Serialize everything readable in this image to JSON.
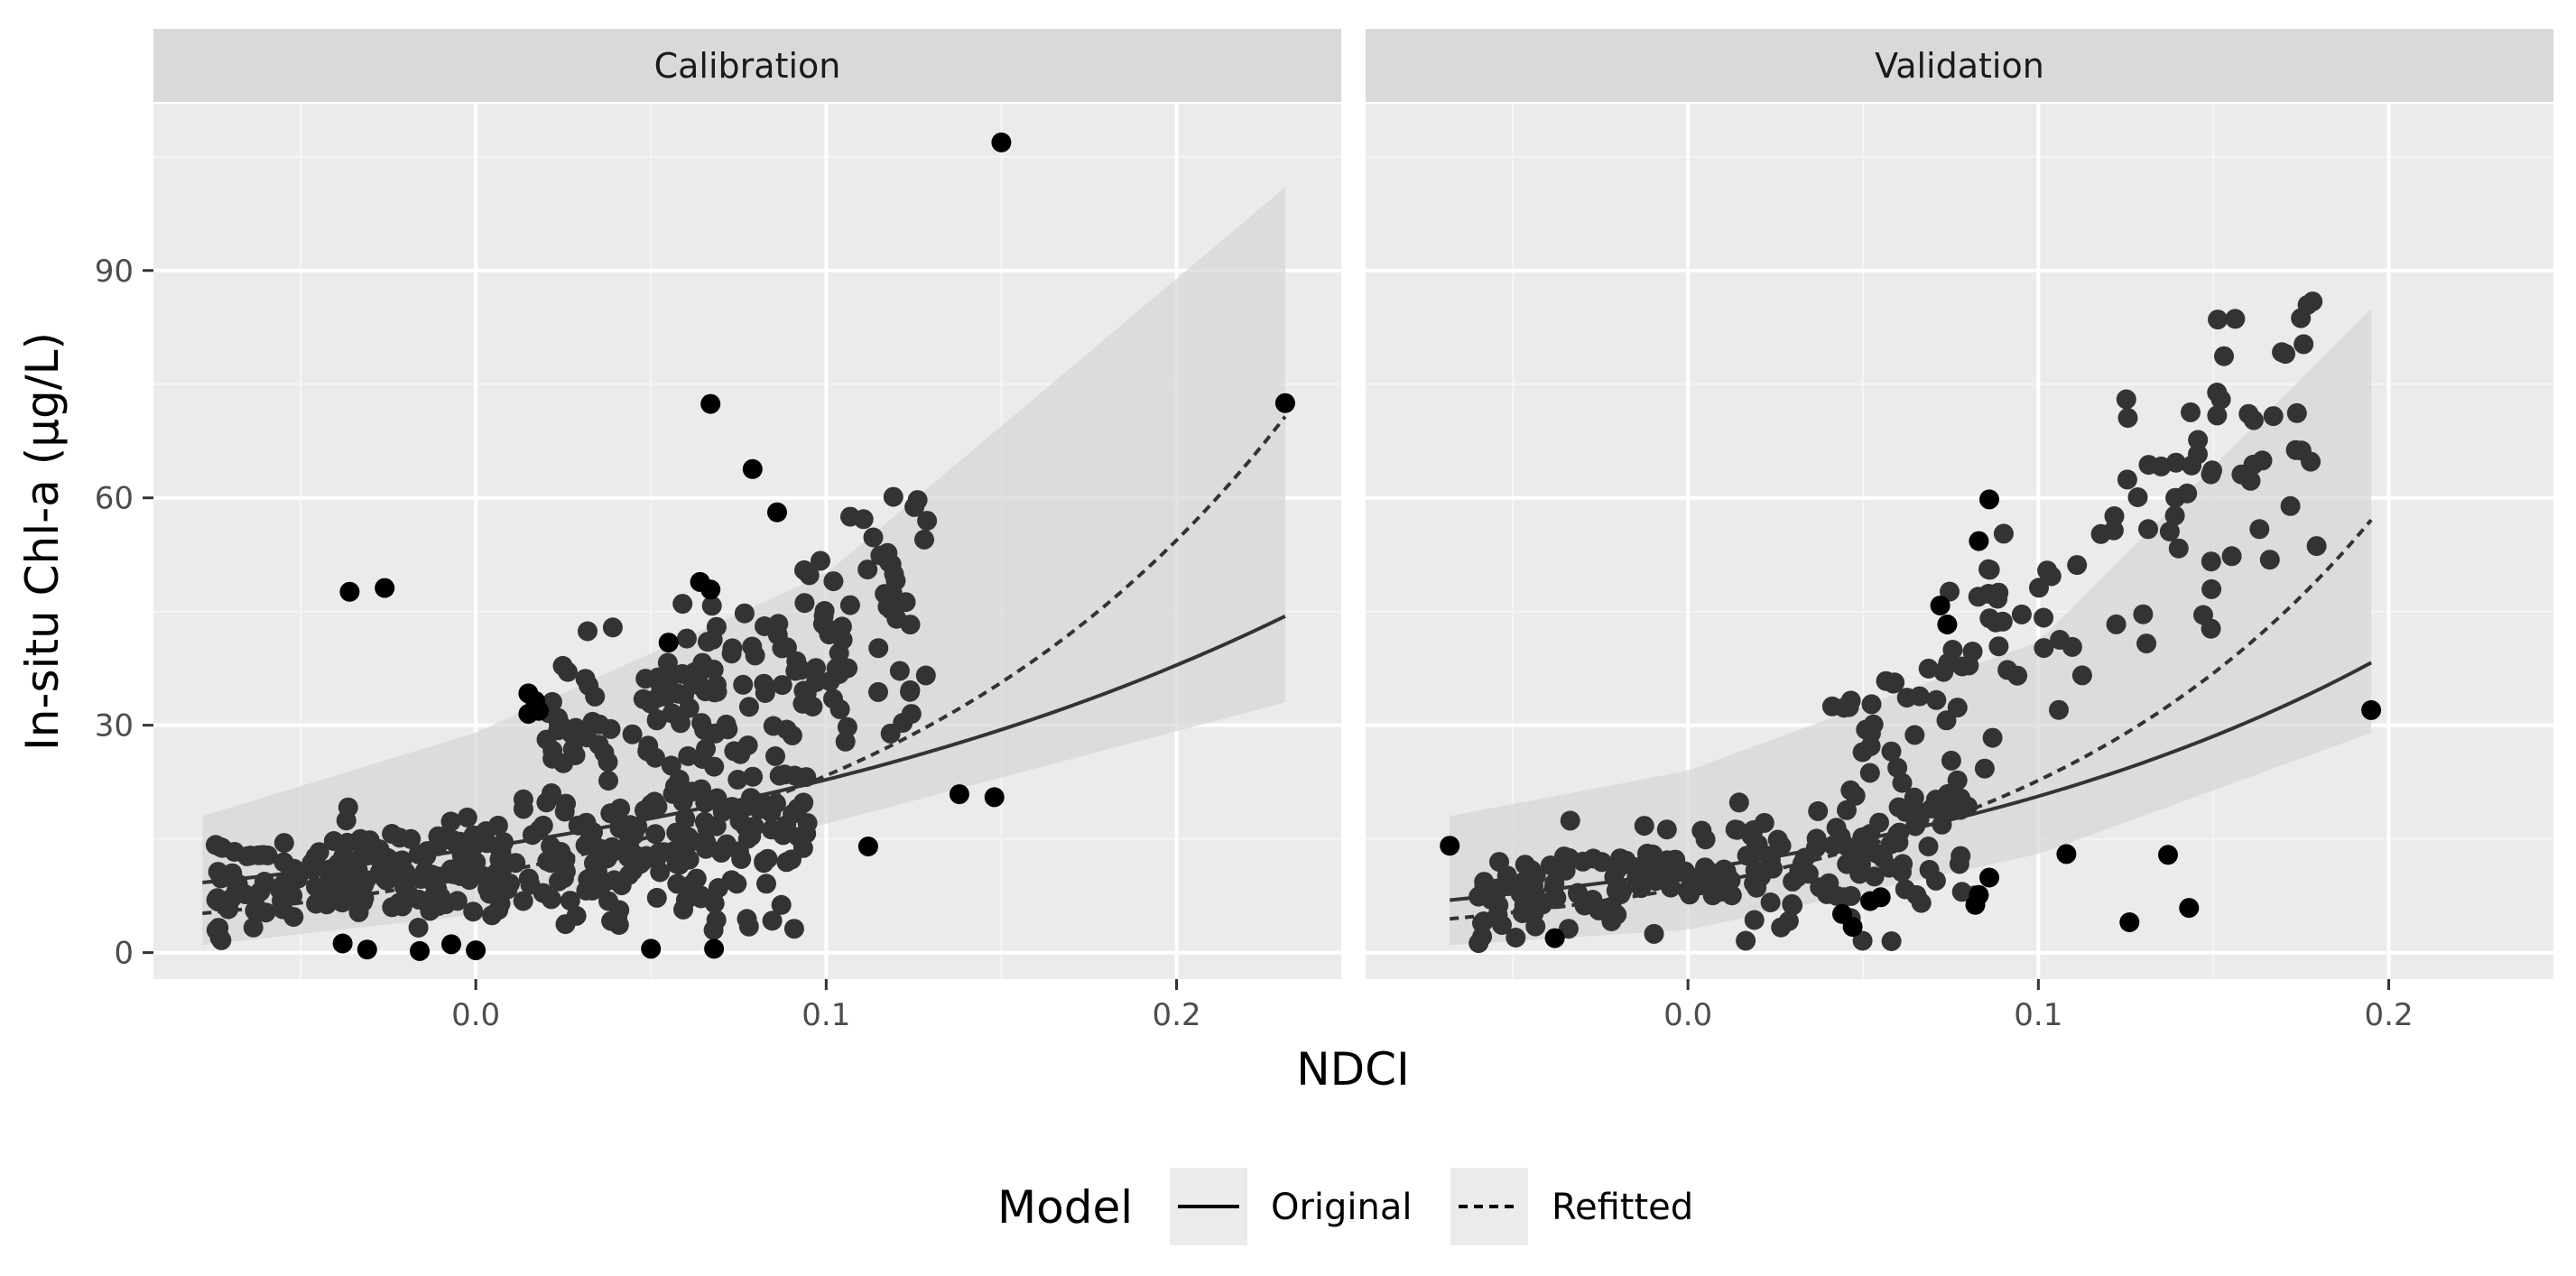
{
  "chart_data": {
    "type": "scatter",
    "xlabel": "NDCI",
    "ylabel": "In-situ Chl-a (µg/L)",
    "xlim": [
      -0.092,
      0.247
    ],
    "ylim": [
      -3.5,
      112
    ],
    "x_ticks": [
      0.0,
      0.1,
      0.2
    ],
    "x_tick_labels": [
      "0.0",
      "0.1",
      "0.2"
    ],
    "y_ticks": [
      0,
      30,
      60,
      90
    ],
    "y_tick_labels": [
      "0",
      "30",
      "60",
      "90"
    ],
    "legend": {
      "title": "Model",
      "placement": "bottom",
      "entries": [
        {
          "label": "Original",
          "linetype": "solid"
        },
        {
          "label": "Refitted",
          "linetype": "dashed"
        }
      ]
    },
    "panels": [
      {
        "title": "Calibration",
        "x_range": [
          -0.078,
          0.231
        ],
        "original_curve": {
          "a": 13.73,
          "b": 5.08
        },
        "refitted_curve": {
          "a": 10.02,
          "b": 8.46
        },
        "band": {
          "upper": [
            [
              -0.078,
              18
            ],
            [
              0.0,
              29
            ],
            [
              0.1,
              50
            ],
            [
              0.231,
              101
            ]
          ],
          "lower": [
            [
              -0.078,
              1
            ],
            [
              0.0,
              5
            ],
            [
              0.1,
              17
            ],
            [
              0.231,
              33
            ]
          ]
        },
        "highlighted_points": [
          [
            -0.036,
            47.6
          ],
          [
            -0.026,
            48.1
          ],
          [
            0.015,
            34.2
          ],
          [
            0.017,
            33.2
          ],
          [
            0.015,
            31.5
          ],
          [
            0.018,
            31.9
          ],
          [
            0.05,
            0.5
          ],
          [
            0.068,
            0.5
          ],
          [
            0.055,
            40.9
          ],
          [
            0.064,
            48.9
          ],
          [
            0.067,
            47.9
          ],
          [
            0.067,
            72.4
          ],
          [
            0.079,
            63.8
          ],
          [
            0.086,
            58.1
          ],
          [
            0.15,
            106.9
          ],
          [
            0.231,
            72.5
          ],
          [
            0.138,
            20.9
          ],
          [
            0.148,
            20.5
          ],
          [
            0.112,
            14.0
          ],
          [
            -0.038,
            1.2
          ],
          [
            -0.031,
            0.4
          ],
          [
            -0.016,
            0.2
          ],
          [
            0.0,
            0.3
          ],
          [
            -0.007,
            1.1
          ]
        ],
        "dense_clusters": [
          {
            "x_min": -0.075,
            "x_max": 0.095,
            "y_base": 10,
            "n": 360
          },
          {
            "x_min": 0.02,
            "x_max": 0.13,
            "y_base": 22,
            "n": 160
          }
        ]
      },
      {
        "title": "Validation",
        "x_range": [
          -0.068,
          0.195
        ],
        "original_curve": {
          "a": 10.77,
          "b": 6.5
        },
        "refitted_curve": {
          "a": 8.61,
          "b": 9.7
        },
        "band": {
          "upper": [
            [
              -0.068,
              18
            ],
            [
              0.0,
              24
            ],
            [
              0.1,
              41
            ],
            [
              0.195,
              85
            ]
          ],
          "lower": [
            [
              -0.068,
              1
            ],
            [
              0.0,
              3
            ],
            [
              0.1,
              13
            ],
            [
              0.195,
              29
            ]
          ]
        },
        "highlighted_points": [
          [
            -0.068,
            14.1
          ],
          [
            -0.038,
            1.9
          ],
          [
            0.072,
            45.8
          ],
          [
            0.074,
            43.3
          ],
          [
            0.083,
            54.3
          ],
          [
            0.086,
            59.8
          ],
          [
            0.086,
            9.9
          ],
          [
            0.108,
            13.0
          ],
          [
            0.126,
            4.0
          ],
          [
            0.137,
            12.9
          ],
          [
            0.143,
            5.9
          ],
          [
            0.195,
            32.0
          ],
          [
            0.044,
            5.1
          ],
          [
            0.052,
            6.8
          ],
          [
            0.055,
            7.3
          ],
          [
            0.047,
            3.4
          ],
          [
            0.082,
            6.3
          ],
          [
            0.083,
            7.6
          ]
        ],
        "dense_clusters": [
          {
            "x_min": -0.06,
            "x_max": 0.085,
            "y_base": 11,
            "n": 210
          },
          {
            "x_min": 0.04,
            "x_max": 0.18,
            "y_base": 26,
            "n": 110
          }
        ]
      }
    ]
  }
}
